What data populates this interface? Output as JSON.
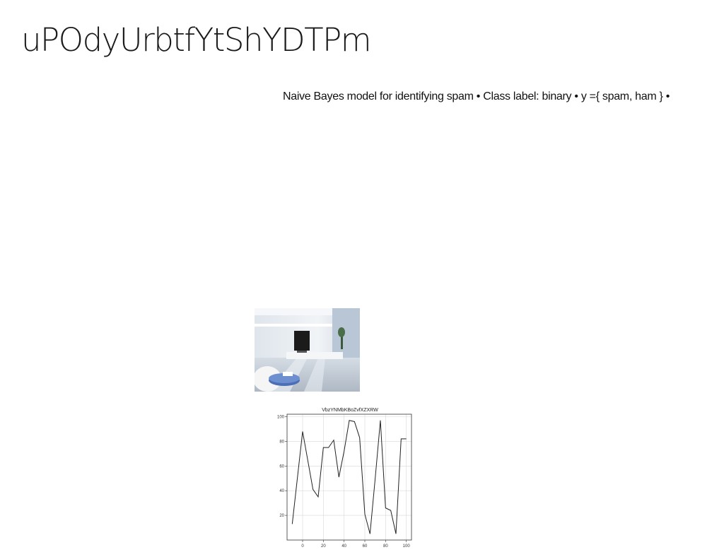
{
  "slide": {
    "title": "uPOdyUrbtfYtShYDTPm",
    "bullet_line": "Naive Bayes model for identifying spam • Class label: binary • y ={ spam, ham } •"
  },
  "photo": {
    "icon": "living-room-photo",
    "colors": {
      "tv": "#1b1b1b",
      "table": "#4a6fb5",
      "wall": "#e9eef3"
    }
  },
  "chart_data": {
    "type": "line",
    "title": "VbzYNMbKBoZvfXZXRW",
    "xlabel": "",
    "ylabel": "",
    "x": [
      -10,
      0,
      10,
      15,
      20,
      25,
      30,
      35,
      40,
      45,
      50,
      55,
      60,
      65,
      70,
      75,
      80,
      85,
      90,
      95,
      100
    ],
    "series": [
      {
        "values": [
          13,
          88,
          41,
          35,
          75,
          75,
          81,
          51,
          72,
          97,
          96,
          83,
          21,
          5,
          50,
          97,
          26,
          24,
          5,
          82,
          82
        ]
      }
    ],
    "xlim": [
      -15,
      105
    ],
    "ylim": [
      0,
      102
    ],
    "xticks": [
      0,
      20,
      40,
      60,
      80,
      100
    ],
    "yticks": [
      20,
      40,
      60,
      80,
      100
    ],
    "grid": true,
    "line_color": "#222222"
  }
}
